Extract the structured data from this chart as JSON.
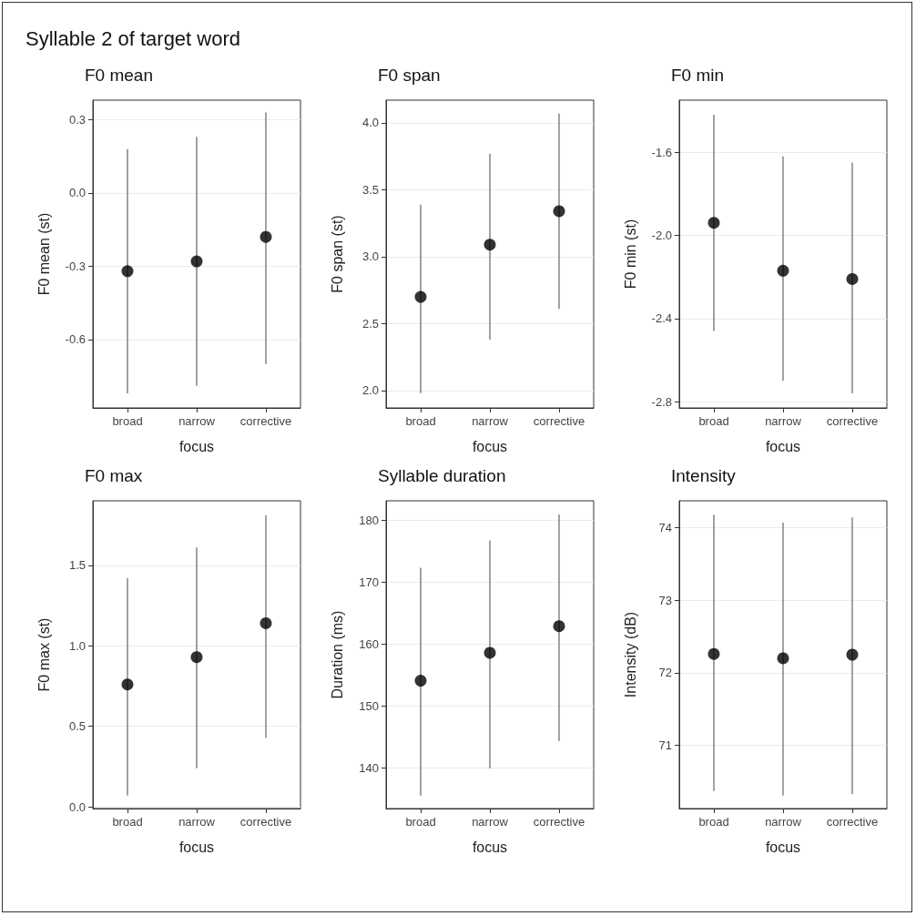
{
  "chart_data": [
    {
      "type": "scatter",
      "title": "F0 mean",
      "xlabel": "focus",
      "ylabel": "F0 mean (st)",
      "annotations": [
        "Syllable 2 of target word"
      ],
      "categories": [
        "broad",
        "narrow",
        "corrective"
      ],
      "values": [
        -0.32,
        -0.28,
        -0.18
      ],
      "errors": [
        [
          -0.82,
          0.18
        ],
        [
          -0.79,
          0.23
        ],
        [
          -0.7,
          0.33
        ]
      ],
      "color": "#000000",
      "ylim": [
        -0.88,
        0.38
      ],
      "yticks": [
        -0.6,
        -0.3,
        {
          "value": 0,
          "label": "0.0"
        },
        0.3
      ],
      "grid": "y",
      "marker": "circle"
    },
    {
      "type": "scatter",
      "title": "F0 span",
      "xlabel": "focus",
      "ylabel": "F0 span (st)",
      "categories": [
        "broad",
        "narrow",
        "corrective"
      ],
      "values": [
        2.7,
        3.09,
        3.34
      ],
      "errors": [
        [
          1.98,
          3.39
        ],
        [
          2.38,
          3.77
        ],
        [
          2.61,
          4.07
        ]
      ],
      "color": "#000000",
      "ylim": [
        1.87,
        4.17
      ],
      "yticks": [
        {
          "value": 2,
          "label": "2.0"
        },
        2.5,
        {
          "value": 3,
          "label": "3.0"
        },
        3.5,
        {
          "value": 4,
          "label": "4.0"
        }
      ],
      "grid": "y",
      "marker": "circle"
    },
    {
      "type": "scatter",
      "title": "F0 min",
      "xlabel": "focus",
      "ylabel": "F0 min (st)",
      "categories": [
        "broad",
        "narrow",
        "corrective"
      ],
      "values": [
        -1.94,
        -2.17,
        -2.21
      ],
      "errors": [
        [
          -2.46,
          -1.42
        ],
        [
          -2.7,
          -1.62
        ],
        [
          -2.76,
          -1.65
        ]
      ],
      "color": "#000000",
      "ylim": [
        -2.83,
        -1.35
      ],
      "yticks": [
        -2.8,
        -2.4,
        {
          "value": -2,
          "label": "-2.0"
        },
        -1.6
      ],
      "grid": "y",
      "marker": "circle"
    },
    {
      "type": "scatter",
      "title": "F0 max",
      "xlabel": "focus",
      "ylabel": "F0 max (st)",
      "categories": [
        "broad",
        "narrow",
        "corrective"
      ],
      "values": [
        0.76,
        0.93,
        1.14
      ],
      "errors": [
        [
          0.07,
          1.42
        ],
        [
          0.24,
          1.61
        ],
        [
          0.43,
          1.81
        ]
      ],
      "color": "#000000",
      "ylim": [
        -0.01,
        1.9
      ],
      "yticks": [
        {
          "value": 0,
          "label": "0.0"
        },
        0.5,
        {
          "value": 1,
          "label": "1.0"
        },
        1.5
      ],
      "grid": "y",
      "marker": "circle"
    },
    {
      "type": "scatter",
      "title": "Syllable duration",
      "xlabel": "focus",
      "ylabel": "Duration (ms)",
      "categories": [
        "broad",
        "narrow",
        "corrective"
      ],
      "values": [
        154.1,
        158.6,
        162.9
      ],
      "errors": [
        [
          135.6,
          172.3
        ],
        [
          140.0,
          176.7
        ],
        [
          144.4,
          180.9
        ]
      ],
      "color": "#000000",
      "ylim": [
        133.5,
        183.1
      ],
      "yticks": [
        140,
        150,
        160,
        170,
        180
      ],
      "grid": "y",
      "marker": "circle"
    },
    {
      "type": "scatter",
      "title": "Intensity",
      "xlabel": "focus",
      "ylabel": "Intensity (dB)",
      "categories": [
        "broad",
        "narrow",
        "corrective"
      ],
      "values": [
        72.26,
        72.2,
        72.25
      ],
      "errors": [
        [
          70.37,
          74.18
        ],
        [
          70.31,
          74.07
        ],
        [
          70.33,
          74.14
        ]
      ],
      "color": "#000000",
      "ylim": [
        70.13,
        74.37
      ],
      "yticks": [
        71,
        72,
        73,
        74
      ],
      "grid": "y",
      "marker": "circle"
    }
  ]
}
